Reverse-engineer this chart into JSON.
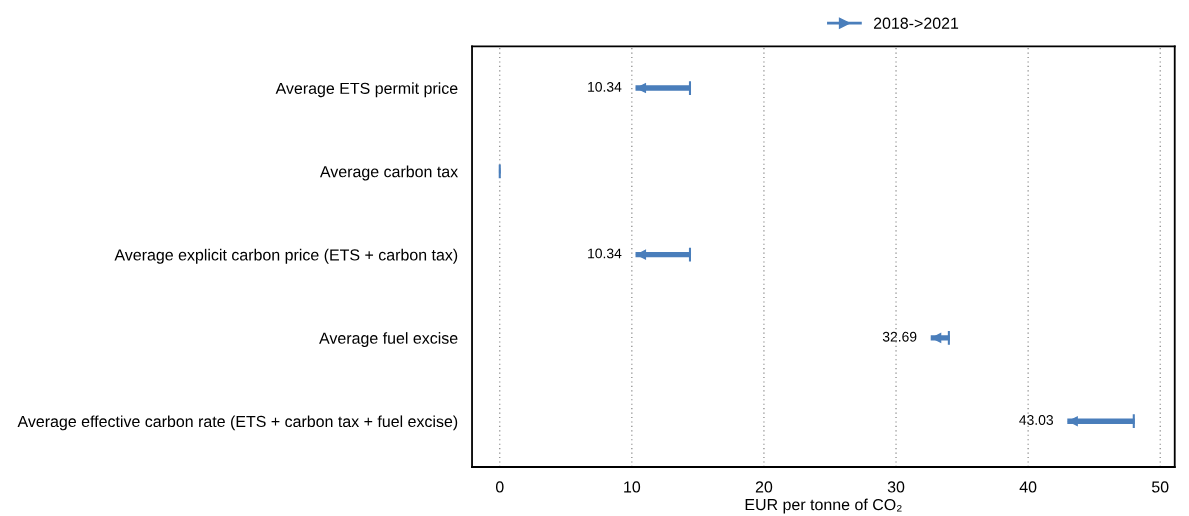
{
  "chart_data": {
    "type": "bar",
    "orientation": "horizontal",
    "categories": [
      "Average ETS permit price",
      "Average carbon tax",
      "Average explicit carbon price (ETS + carbon tax)",
      "Average fuel excise",
      "Average effective carbon rate (ETS + carbon tax + fuel excise)"
    ],
    "series": [
      {
        "name": "2018->2021",
        "color": "#4a7ebb",
        "base": [
          14.4,
          0,
          14.4,
          34,
          48
        ],
        "values": [
          -4.06,
          0,
          -4.06,
          -1.31,
          -4.97
        ],
        "value_labels": [
          "10.34",
          null,
          "10.34",
          "32.69",
          "43.03"
        ]
      }
    ],
    "xlabel": "EUR per tonne of CO₂",
    "xlim": [
      -2.1,
      51.1
    ],
    "xticks": [
      0,
      10,
      20,
      30,
      40,
      50
    ],
    "grid": "x",
    "legend": "top"
  }
}
